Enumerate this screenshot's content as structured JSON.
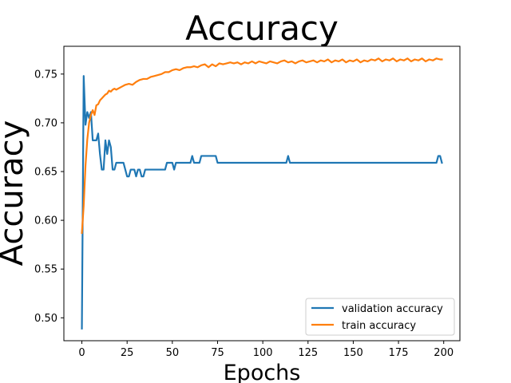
{
  "chart_data": {
    "type": "line",
    "title": "Accuracy",
    "xlabel": "Epochs",
    "ylabel": "Accuracy",
    "xlim": [
      -9.95,
      208.95
    ],
    "ylim": [
      0.4765,
      0.7785
    ],
    "xticks": [
      0,
      25,
      50,
      75,
      100,
      125,
      150,
      175,
      200
    ],
    "xtick_labels": [
      "0",
      "25",
      "50",
      "75",
      "100",
      "125",
      "150",
      "175",
      "200"
    ],
    "yticks": [
      0.5,
      0.55,
      0.6,
      0.65,
      0.7,
      0.75
    ],
    "ytick_labels": [
      "0.50",
      "0.55",
      "0.60",
      "0.65",
      "0.70",
      "0.75"
    ],
    "grid": false,
    "legend_position": "lower-right",
    "series": [
      {
        "name": "validation accuracy",
        "color": "#1f77b4",
        "points": [
          [
            0,
            0.489
          ],
          [
            1,
            0.748
          ],
          [
            2,
            0.698
          ],
          [
            3,
            0.711
          ],
          [
            4,
            0.705
          ],
          [
            5,
            0.711
          ],
          [
            6,
            0.682
          ],
          [
            7,
            0.682
          ],
          [
            8,
            0.682
          ],
          [
            9,
            0.689
          ],
          [
            10,
            0.668
          ],
          [
            11,
            0.652
          ],
          [
            12,
            0.652
          ],
          [
            13,
            0.682
          ],
          [
            14,
            0.668
          ],
          [
            15,
            0.682
          ],
          [
            16,
            0.675
          ],
          [
            17,
            0.652
          ],
          [
            18,
            0.652
          ],
          [
            19,
            0.659
          ],
          [
            20,
            0.659
          ],
          [
            21,
            0.659
          ],
          [
            22,
            0.659
          ],
          [
            23,
            0.659
          ],
          [
            24,
            0.652
          ],
          [
            25,
            0.645
          ],
          [
            26,
            0.645
          ],
          [
            27,
            0.652
          ],
          [
            28,
            0.652
          ],
          [
            29,
            0.652
          ],
          [
            30,
            0.645
          ],
          [
            31,
            0.652
          ],
          [
            32,
            0.652
          ],
          [
            33,
            0.645
          ],
          [
            34,
            0.645
          ],
          [
            35,
            0.652
          ],
          [
            40,
            0.652
          ],
          [
            45,
            0.652
          ],
          [
            46,
            0.652
          ],
          [
            47,
            0.659
          ],
          [
            48,
            0.659
          ],
          [
            49,
            0.659
          ],
          [
            50,
            0.659
          ],
          [
            51,
            0.652
          ],
          [
            52,
            0.659
          ],
          [
            55,
            0.659
          ],
          [
            60,
            0.659
          ],
          [
            61,
            0.666
          ],
          [
            62,
            0.659
          ],
          [
            65,
            0.659
          ],
          [
            66,
            0.666
          ],
          [
            70,
            0.666
          ],
          [
            74,
            0.666
          ],
          [
            75,
            0.659
          ],
          [
            100,
            0.659
          ],
          [
            113,
            0.659
          ],
          [
            114,
            0.666
          ],
          [
            115,
            0.659
          ],
          [
            150,
            0.659
          ],
          [
            175,
            0.659
          ],
          [
            196,
            0.659
          ],
          [
            197,
            0.666
          ],
          [
            198,
            0.666
          ],
          [
            199,
            0.659
          ]
        ]
      },
      {
        "name": "train accuracy",
        "color": "#ff7f0e",
        "points": [
          [
            0,
            0.587
          ],
          [
            1,
            0.615
          ],
          [
            2,
            0.656
          ],
          [
            3,
            0.683
          ],
          [
            4,
            0.7
          ],
          [
            5,
            0.708
          ],
          [
            6,
            0.713
          ],
          [
            7,
            0.708
          ],
          [
            8,
            0.718
          ],
          [
            9,
            0.719
          ],
          [
            10,
            0.723
          ],
          [
            11,
            0.725
          ],
          [
            12,
            0.727
          ],
          [
            13,
            0.729
          ],
          [
            14,
            0.73
          ],
          [
            15,
            0.733
          ],
          [
            16,
            0.732
          ],
          [
            17,
            0.734
          ],
          [
            18,
            0.735
          ],
          [
            19,
            0.734
          ],
          [
            20,
            0.735
          ],
          [
            22,
            0.737
          ],
          [
            24,
            0.739
          ],
          [
            26,
            0.74
          ],
          [
            28,
            0.739
          ],
          [
            30,
            0.742
          ],
          [
            32,
            0.744
          ],
          [
            34,
            0.745
          ],
          [
            36,
            0.745
          ],
          [
            38,
            0.747
          ],
          [
            40,
            0.748
          ],
          [
            42,
            0.749
          ],
          [
            44,
            0.75
          ],
          [
            46,
            0.752
          ],
          [
            48,
            0.752
          ],
          [
            50,
            0.754
          ],
          [
            52,
            0.755
          ],
          [
            54,
            0.754
          ],
          [
            56,
            0.756
          ],
          [
            58,
            0.757
          ],
          [
            60,
            0.757
          ],
          [
            62,
            0.758
          ],
          [
            64,
            0.757
          ],
          [
            66,
            0.759
          ],
          [
            68,
            0.76
          ],
          [
            70,
            0.757
          ],
          [
            72,
            0.76
          ],
          [
            74,
            0.758
          ],
          [
            76,
            0.761
          ],
          [
            78,
            0.76
          ],
          [
            80,
            0.761
          ],
          [
            82,
            0.762
          ],
          [
            84,
            0.761
          ],
          [
            86,
            0.762
          ],
          [
            88,
            0.76
          ],
          [
            90,
            0.762
          ],
          [
            92,
            0.761
          ],
          [
            94,
            0.763
          ],
          [
            96,
            0.761
          ],
          [
            98,
            0.763
          ],
          [
            100,
            0.762
          ],
          [
            102,
            0.761
          ],
          [
            104,
            0.763
          ],
          [
            106,
            0.762
          ],
          [
            108,
            0.761
          ],
          [
            110,
            0.763
          ],
          [
            112,
            0.764
          ],
          [
            114,
            0.762
          ],
          [
            116,
            0.763
          ],
          [
            118,
            0.761
          ],
          [
            120,
            0.763
          ],
          [
            122,
            0.764
          ],
          [
            124,
            0.762
          ],
          [
            126,
            0.763
          ],
          [
            128,
            0.764
          ],
          [
            130,
            0.762
          ],
          [
            132,
            0.764
          ],
          [
            134,
            0.763
          ],
          [
            136,
            0.765
          ],
          [
            138,
            0.762
          ],
          [
            140,
            0.764
          ],
          [
            142,
            0.763
          ],
          [
            144,
            0.765
          ],
          [
            146,
            0.762
          ],
          [
            148,
            0.764
          ],
          [
            150,
            0.763
          ],
          [
            152,
            0.765
          ],
          [
            154,
            0.762
          ],
          [
            156,
            0.764
          ],
          [
            158,
            0.763
          ],
          [
            160,
            0.765
          ],
          [
            162,
            0.764
          ],
          [
            164,
            0.766
          ],
          [
            166,
            0.763
          ],
          [
            168,
            0.765
          ],
          [
            170,
            0.764
          ],
          [
            172,
            0.766
          ],
          [
            174,
            0.763
          ],
          [
            176,
            0.765
          ],
          [
            178,
            0.764
          ],
          [
            180,
            0.766
          ],
          [
            182,
            0.763
          ],
          [
            184,
            0.765
          ],
          [
            186,
            0.764
          ],
          [
            188,
            0.766
          ],
          [
            190,
            0.763
          ],
          [
            192,
            0.765
          ],
          [
            194,
            0.764
          ],
          [
            196,
            0.766
          ],
          [
            198,
            0.765
          ],
          [
            199,
            0.765
          ]
        ]
      }
    ]
  }
}
